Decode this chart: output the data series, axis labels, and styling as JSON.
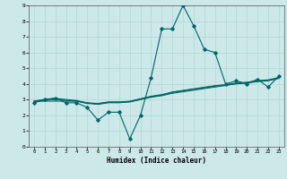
{
  "title": "",
  "xlabel": "Humidex (Indice chaleur)",
  "ylabel": "",
  "background_color": "#cce8e8",
  "line_color": "#006666",
  "xlim": [
    -0.5,
    23.5
  ],
  "ylim": [
    0,
    9
  ],
  "xticks": [
    0,
    1,
    2,
    3,
    4,
    5,
    6,
    7,
    8,
    9,
    10,
    11,
    12,
    13,
    14,
    15,
    16,
    17,
    18,
    19,
    20,
    21,
    22,
    23
  ],
  "yticks": [
    0,
    1,
    2,
    3,
    4,
    5,
    6,
    7,
    8,
    9
  ],
  "series": [
    [
      2.8,
      3.0,
      3.1,
      2.8,
      2.8,
      2.5,
      1.7,
      2.2,
      2.2,
      0.5,
      2.0,
      4.4,
      7.5,
      7.5,
      9.0,
      7.7,
      6.2,
      6.0,
      4.0,
      4.2,
      4.0,
      4.3,
      3.8,
      4.5
    ],
    [
      2.9,
      2.9,
      2.9,
      2.9,
      2.9,
      2.8,
      2.7,
      2.8,
      2.8,
      2.85,
      3.0,
      3.15,
      3.25,
      3.4,
      3.5,
      3.6,
      3.7,
      3.8,
      3.9,
      4.0,
      4.05,
      4.15,
      4.2,
      4.35
    ],
    [
      2.85,
      2.95,
      3.0,
      2.95,
      2.9,
      2.75,
      2.72,
      2.82,
      2.82,
      2.87,
      3.02,
      3.18,
      3.28,
      3.45,
      3.55,
      3.65,
      3.75,
      3.85,
      3.92,
      4.02,
      4.07,
      4.17,
      4.22,
      4.37
    ],
    [
      2.88,
      2.98,
      3.05,
      2.98,
      2.92,
      2.78,
      2.74,
      2.84,
      2.84,
      2.88,
      3.04,
      3.2,
      3.3,
      3.47,
      3.57,
      3.67,
      3.77,
      3.87,
      3.94,
      4.04,
      4.09,
      4.19,
      4.24,
      4.39
    ],
    [
      2.92,
      3.02,
      3.08,
      3.01,
      2.95,
      2.8,
      2.76,
      2.86,
      2.86,
      2.9,
      3.06,
      3.22,
      3.32,
      3.49,
      3.59,
      3.69,
      3.79,
      3.89,
      3.96,
      4.06,
      4.11,
      4.21,
      4.26,
      4.41
    ]
  ]
}
